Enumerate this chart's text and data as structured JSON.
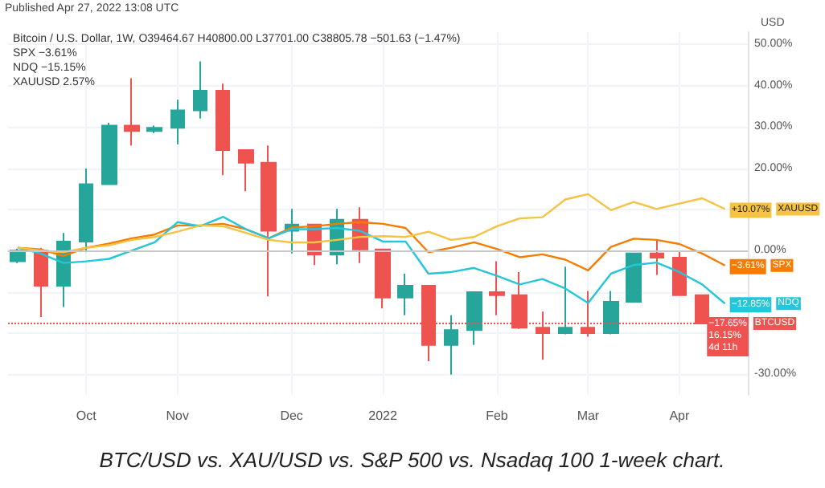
{
  "chart_data": {
    "type": "candlestick",
    "title": "BTC/USD vs. XAU/USD vs. S&P 500 vs. Nsadaq 100 1-week chart.",
    "subtitle": "Published Apr 27, 2022 13:08 UTC",
    "ylabel": "USD",
    "x": [
      "2021-09-13",
      "2021-09-20",
      "2021-09-27",
      "2021-10-04",
      "2021-10-11",
      "2021-10-18",
      "2021-10-25",
      "2021-11-01",
      "2021-11-08",
      "2021-11-15",
      "2021-11-22",
      "2021-11-29",
      "2021-12-06",
      "2021-12-13",
      "2021-12-20",
      "2021-12-27",
      "2022-01-03",
      "2022-01-10",
      "2022-01-17",
      "2022-01-24",
      "2022-01-31",
      "2022-02-07",
      "2022-02-14",
      "2022-02-21",
      "2022-02-28",
      "2022-03-07",
      "2022-03-14",
      "2022-03-21",
      "2022-03-28",
      "2022-04-04",
      "2022-04-11",
      "2022-04-18"
    ],
    "series": [
      {
        "name": "BTCUSD",
        "x": [
          "2021-09-13",
          "2021-09-20",
          "2021-09-27",
          "2021-10-04",
          "2021-10-11",
          "2021-10-18",
          "2021-10-25",
          "2021-11-01",
          "2021-11-08",
          "2021-11-15",
          "2021-11-22",
          "2021-11-29",
          "2021-12-06",
          "2021-12-13",
          "2021-12-20",
          "2021-12-27",
          "2022-01-03",
          "2022-01-10",
          "2022-01-17",
          "2022-01-24",
          "2022-01-31",
          "2022-02-07",
          "2022-02-14",
          "2022-02-21",
          "2022-02-28",
          "2022-03-07",
          "2022-03-14",
          "2022-03-21",
          "2022-03-28",
          "2022-04-04",
          "2022-04-11"
        ],
        "color": "#ef5350",
        "ohlc": [
          [
            -2.6,
            0.5,
            -3,
            0
          ],
          [
            0,
            0.7,
            -16.1,
            -8.5
          ],
          [
            -8.5,
            4.3,
            -13.7,
            2.2
          ],
          [
            2.2,
            19.9,
            -0.4,
            16.1
          ],
          [
            16.1,
            31,
            16.1,
            30.3
          ],
          [
            30.3,
            41.8,
            25.5,
            29.0
          ],
          [
            29.0,
            30.3,
            28.5,
            29.8
          ],
          [
            29.8,
            36.6,
            25.8,
            34.0
          ],
          [
            34.0,
            45.9,
            32.0,
            38.8
          ],
          [
            38.8,
            40.5,
            18.3,
            24.4
          ],
          [
            24.4,
            24.4,
            14.4,
            21.3
          ],
          [
            21.3,
            25.5,
            -11.1,
            4.8
          ],
          [
            4.8,
            10.1,
            -0.7,
            6.3
          ],
          [
            6.3,
            6.3,
            -3.5,
            -1.0
          ],
          [
            -1.0,
            10.1,
            -3.3,
            7.5
          ],
          [
            7.5,
            10.5,
            -3.0,
            0.3
          ],
          [
            0.3,
            0.3,
            -14.0,
            -11.4
          ],
          [
            -11.4,
            -5.6,
            -15.7,
            -8.5
          ],
          [
            -8.5,
            -8.5,
            -26.8,
            -22.9
          ],
          [
            -22.9,
            -15.7,
            -30.1,
            -19.3
          ],
          [
            -19.3,
            -10.1,
            -22.9,
            -10.1
          ],
          [
            -10.1,
            -2.6,
            -15.7,
            -10.8
          ],
          [
            -10.8,
            -5.2,
            -19.0,
            -18.7
          ],
          [
            -18.7,
            -14.8,
            -26.5,
            -20.0
          ],
          [
            -20.0,
            -3.9,
            -20.3,
            -18.7
          ],
          [
            -18.7,
            -9.8,
            -20.9,
            -20.0
          ],
          [
            -20.0,
            -9.8,
            -20.3,
            -12.4
          ],
          [
            -12.4,
            -0.7,
            -12.4,
            -0.7
          ],
          [
            -0.7,
            2.6,
            -5.9,
            -1.7
          ],
          [
            -1.7,
            0,
            -10.8,
            -10.8
          ],
          [
            -10.8,
            -10.8,
            -17.65,
            -17.65
          ]
        ],
        "colors": [
          "#26a69a",
          "#ef5350",
          "#26a69a",
          "#26a69a",
          "#26a69a",
          "#ef5350",
          "#26a69a",
          "#26a69a",
          "#26a69a",
          "#ef5350",
          "#ef5350",
          "#ef5350",
          "#26a69a",
          "#ef5350",
          "#26a69a",
          "#ef5350",
          "#ef5350",
          "#26a69a",
          "#ef5350",
          "#26a69a",
          "#26a69a",
          "#ef5350",
          "#ef5350",
          "#ef5350",
          "#26a69a",
          "#ef5350",
          "#26a69a",
          "#26a69a",
          "#ef5350",
          "#ef5350",
          "#ef5350"
        ]
      },
      {
        "type": "line",
        "name": "SPX",
        "color": "#f57c00",
        "values": [
          0.7,
          0.3,
          -1.3,
          0.7,
          1.7,
          3.0,
          3.9,
          6.1,
          6.1,
          6.5,
          5.2,
          3.0,
          5.6,
          5.9,
          6.5,
          6.9,
          6.5,
          5.5,
          -0.4,
          0.7,
          2.0,
          0.4,
          -1.6,
          -0.9,
          -2.2,
          -4.8,
          0.9,
          2.9,
          2.6,
          1.6,
          -0.7,
          -3.61
        ]
      },
      {
        "type": "line",
        "name": "NDQ",
        "color": "#26c6da",
        "values": [
          0.7,
          -0.7,
          -3.0,
          -2.6,
          -2.0,
          0,
          2.0,
          6.9,
          5.9,
          8.2,
          5.2,
          3.0,
          5.2,
          5.2,
          5.5,
          4.8,
          2.2,
          2.2,
          -5.6,
          -5.2,
          -4.2,
          -6.1,
          -8.2,
          -6.9,
          -9.2,
          -12.7,
          -5.6,
          -3.5,
          -2.9,
          -5.2,
          -8.2,
          -12.85
        ]
      },
      {
        "type": "line",
        "name": "XAUUSD",
        "color": "#f5c242",
        "values": [
          0.7,
          0,
          -0.4,
          0.7,
          1.3,
          2.6,
          3.3,
          4.6,
          6.1,
          5.9,
          4.3,
          2.6,
          2.0,
          2.0,
          2.6,
          3.3,
          3.5,
          3.3,
          4.6,
          2.6,
          3.3,
          5.9,
          7.8,
          8.1,
          12.4,
          13.7,
          9.8,
          11.8,
          10.1,
          11.4,
          12.7,
          10.07
        ]
      }
    ],
    "xlim": [
      "2021-09-10",
      "2022-04-25"
    ],
    "xticks": [
      {
        "value": "2021-10-04",
        "label": "Oct"
      },
      {
        "value": "2021-11-01",
        "label": "Nov"
      },
      {
        "value": "2021-12-06",
        "label": "Dec"
      },
      {
        "value": "2022-01-03",
        "label": "2022"
      },
      {
        "value": "2022-02-07",
        "label": "Feb"
      },
      {
        "value": "2022-03-07",
        "label": "Mar"
      },
      {
        "value": "2022-04-04",
        "label": "Apr"
      }
    ],
    "ylim": [
      -35,
      53
    ],
    "yticks": [
      {
        "value": -30,
        "label": "-30.00%"
      },
      {
        "value": -20,
        "label": null
      },
      {
        "value": -10,
        "label": null
      },
      {
        "value": 0,
        "label": "0.00%"
      },
      {
        "value": 10,
        "label": null
      },
      {
        "value": 20,
        "label": "20.00%"
      },
      {
        "value": 30,
        "label": "30.00%"
      },
      {
        "value": 40,
        "label": "40.00%"
      },
      {
        "value": 50,
        "label": "50.00%"
      }
    ],
    "grid": true,
    "legend": "right",
    "ref_lines": [
      {
        "axis": "y",
        "value": 0,
        "color": "#c8c8c8",
        "line_style": "solid"
      },
      {
        "axis": "y",
        "value": -17.65,
        "color": "#ef5350",
        "line_style": "dotted"
      }
    ],
    "annotations": [
      "Bitcoin / U.S. Dollar, 1W, O39464.67 H40800.00 L37701.00 C38805.78 −501.63 (−1.47%)",
      "SPX −3.61%",
      "NDQ −15.15%",
      "XAUUSD 2.57%",
      {
        "text": "−17.65%\n16.15%\n4d 11h",
        "x": "2022-04-11",
        "y": -17.65
      },
      {
        "text": "−3.61%",
        "x": "2022-04-18",
        "y": -3.61
      },
      {
        "text": "−12.85%",
        "x": "2022-04-18",
        "y": -12.85
      },
      {
        "text": "+10.07%",
        "x": "2022-04-18",
        "y": 10.07
      }
    ]
  }
}
